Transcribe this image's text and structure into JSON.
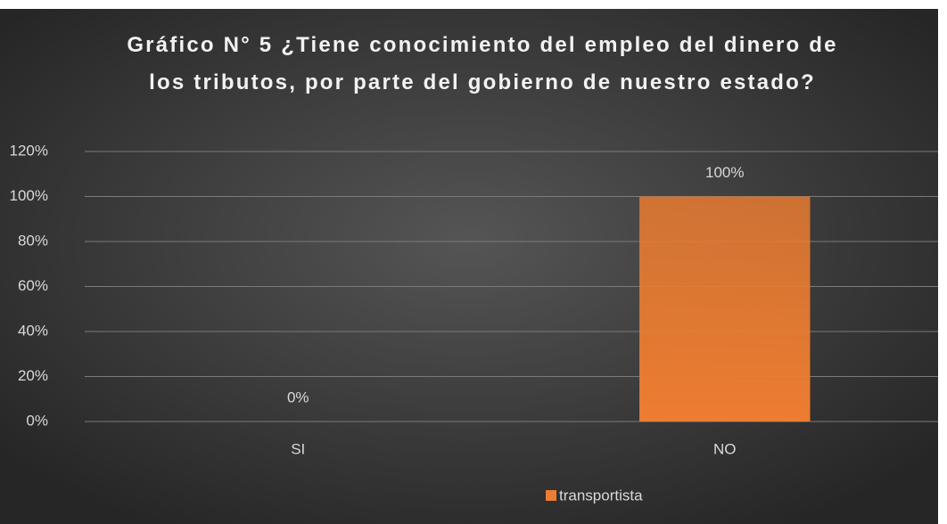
{
  "chart_data": {
    "type": "bar",
    "title": "Gráfico N° 5 ¿Tiene conocimiento del empleo del dinero de los tributos, por parte del gobierno de nuestro estado?",
    "categories": [
      "SI",
      "NO"
    ],
    "series": [
      {
        "name": "transportista",
        "color": "#ed7d31",
        "values": [
          0,
          100
        ],
        "value_labels": [
          "0%",
          "100%"
        ]
      }
    ],
    "ylim": [
      0,
      120
    ],
    "yticks": [
      {
        "value": 0,
        "label": "0%"
      },
      {
        "value": 20,
        "label": "20%"
      },
      {
        "value": 40,
        "label": "40%"
      },
      {
        "value": 60,
        "label": "60%"
      },
      {
        "value": 80,
        "label": "80%"
      },
      {
        "value": 100,
        "label": "100%"
      },
      {
        "value": 120,
        "label": "120%"
      }
    ],
    "grid": true,
    "legend": "bottom"
  }
}
